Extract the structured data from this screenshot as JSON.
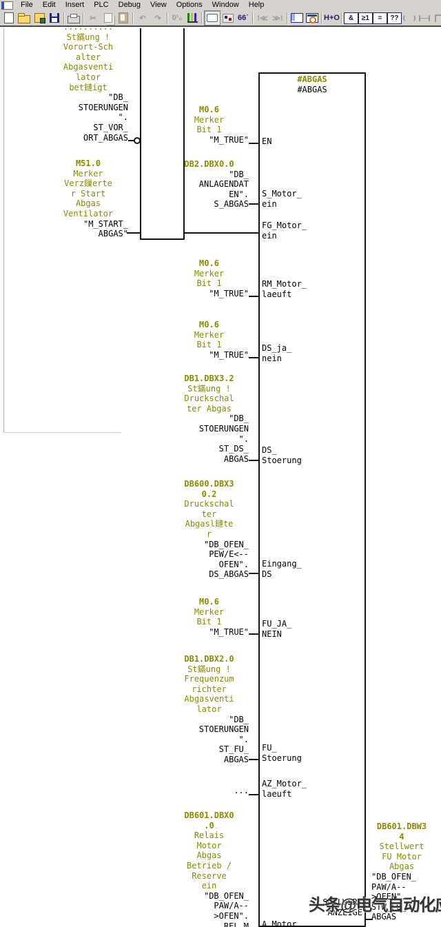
{
  "menu": {
    "items": [
      "File",
      "Edit",
      "Insert",
      "PLC",
      "Debug",
      "View",
      "Options",
      "Window",
      "Help"
    ]
  },
  "toolbar": {
    "buttons": [
      {
        "name": "new",
        "style": "doc"
      },
      {
        "name": "open",
        "style": "folder"
      },
      {
        "name": "open-object",
        "style": "openobj"
      },
      {
        "name": "save",
        "style": "floppy"
      },
      {
        "sep": true
      },
      {
        "name": "print",
        "style": "printer"
      },
      {
        "sep": true
      },
      {
        "name": "cut",
        "glyph": "✂",
        "disabled": true
      },
      {
        "name": "copy",
        "style": "copy",
        "disabled": true
      },
      {
        "name": "paste",
        "style": "paste",
        "disabled": true
      },
      {
        "sep": true
      },
      {
        "name": "undo",
        "glyph": "↶",
        "disabled": true
      },
      {
        "name": "redo",
        "glyph": "↷",
        "disabled": true
      },
      {
        "sep": true
      },
      {
        "name": "address-identification",
        "glyph": "0¹₀",
        "disabled": true
      },
      {
        "name": "download",
        "style": "chart"
      },
      {
        "sep": true
      },
      {
        "name": "comment-toggle",
        "style": "comment",
        "pressed": true
      },
      {
        "name": "symbol-representation",
        "style": "symrep"
      },
      {
        "name": "monitor-glasses",
        "glyph": "66ˊ"
      },
      {
        "sep": true
      },
      {
        "name": "previous-error",
        "glyph": "!≪",
        "disabled": true
      },
      {
        "name": "next-error",
        "glyph": "≫!",
        "disabled": true
      },
      {
        "sep": true
      },
      {
        "name": "overview-window",
        "style": "window"
      },
      {
        "name": "detail-window",
        "style": "zoomwin"
      },
      {
        "sep": true
      },
      {
        "name": "program-elements",
        "glyph": "H+O"
      },
      {
        "sep": true
      },
      {
        "name": "and-box",
        "glyph": "&",
        "box": true
      },
      {
        "name": "or-box",
        "glyph": "≥1",
        "box": true
      },
      {
        "name": "assign-box",
        "glyph": "=",
        "box": true
      },
      {
        "name": "empty-box",
        "glyph": "??",
        "box": true
      },
      {
        "name": "coil",
        "style": "lad-coil",
        "disabled": true
      },
      {
        "name": "contact",
        "style": "lad-contact",
        "disabled": true
      },
      {
        "name": "open-branch",
        "style": "lad-open",
        "disabled": true
      },
      {
        "name": "close-branch",
        "style": "lad-close",
        "disabled": true
      }
    ]
  },
  "diagram": {
    "colors": {
      "symbol_comment": "#8a8a00",
      "operand": "#000000"
    },
    "block": {
      "name_comment": "#ABGAS",
      "name": "#ABGAS",
      "inputs": {
        "en": [
          "EN"
        ],
        "s": [
          "S_Motor_",
          "ein"
        ],
        "fg": [
          "FG_Motor_",
          "ein"
        ],
        "rm": [
          "RM_Motor_",
          "laeuft"
        ],
        "dsjn": [
          "DS_ja_",
          "nein"
        ],
        "dss": [
          "DS_",
          "Stoerung"
        ],
        "eds": [
          "Eingang_",
          "DS"
        ],
        "fujn": [
          "FU_JA_",
          "NEIN"
        ],
        "fus": [
          "FU_",
          "Stoerung"
        ],
        "az": [
          "AZ_Motor_",
          "laeuft"
        ],
        "am": [
          "A_Motor"
        ]
      },
      "outputs": {
        "soll": [
          "SOLLWERT",
          "ANZEIGE"
        ]
      }
    },
    "operands": {
      "a1": [
        [
          "..........",
          "cmt"
        ],
        [
          "St鏋ung !",
          "cmt"
        ],
        [
          "Vorort-Sch",
          "cmt"
        ],
        [
          "alter",
          "cmt"
        ],
        [
          "Abgasventi",
          "cmt"
        ],
        [
          "lator",
          "cmt"
        ],
        [
          "bet鏈igt",
          "cmt"
        ],
        [
          "\"DB_",
          "opd"
        ],
        [
          "STOERUNGEN",
          "opd"
        ],
        [
          "\".",
          "opd"
        ],
        [
          "ST_VOR_",
          "opd"
        ],
        [
          "ORT_ABGAS",
          "opd"
        ]
      ],
      "a2": [
        [
          "M51.0",
          "addr"
        ],
        [
          "Merker",
          "cmt"
        ],
        [
          "Verz鏁erte",
          "cmt"
        ],
        [
          "r Start",
          "cmt"
        ],
        [
          "Abgas",
          "cmt"
        ],
        [
          "Ventilator",
          "cmt"
        ],
        [
          "\"M_START_",
          "opd"
        ],
        [
          "ABGAS\"",
          "opd"
        ]
      ],
      "b1": [
        [
          "M0.6",
          "addr"
        ],
        [
          "Merker",
          "cmt"
        ],
        [
          "Bit 1",
          "cmt"
        ],
        [
          "\"M_TRUE\"",
          "opd"
        ]
      ],
      "b2": [
        [
          "DB2.DBX0.0",
          "addr"
        ],
        [
          "\"DB_",
          "opd"
        ],
        [
          "ANLAGENDAT",
          "opd"
        ],
        [
          "EN\".",
          "opd"
        ],
        [
          "S_ABGAS",
          "opd"
        ]
      ],
      "b3": [
        [
          "M0.6",
          "addr"
        ],
        [
          "Merker",
          "cmt"
        ],
        [
          "Bit 1",
          "cmt"
        ],
        [
          "\"M_TRUE\"",
          "opd"
        ]
      ],
      "b4": [
        [
          "M0.6",
          "addr"
        ],
        [
          "Merker",
          "cmt"
        ],
        [
          "Bit 1",
          "cmt"
        ],
        [
          "\"M_TRUE\"",
          "opd"
        ]
      ],
      "b5": [
        [
          "DB1.DBX3.2",
          "addr"
        ],
        [
          "St鏋ung !",
          "cmt"
        ],
        [
          "Druckschal",
          "cmt"
        ],
        [
          "ter Abgas",
          "cmt"
        ],
        [
          "\"DB_",
          "opd"
        ],
        [
          "STOERUNGEN",
          "opd"
        ],
        [
          "\".",
          "opd"
        ],
        [
          "ST_DS_",
          "opd"
        ],
        [
          "ABGAS",
          "opd"
        ]
      ],
      "b6": [
        [
          "DB600.DBX3",
          "addr"
        ],
        [
          "0.2",
          "addr"
        ],
        [
          "Druckschal",
          "cmt"
        ],
        [
          "ter",
          "cmt"
        ],
        [
          "Abgasl鏈te",
          "cmt"
        ],
        [
          "r",
          "cmt"
        ],
        [
          "\"DB_OFEN_",
          "opd"
        ],
        [
          "PEW/E<--",
          "opd"
        ],
        [
          "OFEN\".",
          "opd"
        ],
        [
          "DS_ABGAS",
          "opd"
        ]
      ],
      "b7": [
        [
          "M0.6",
          "addr"
        ],
        [
          "Merker",
          "cmt"
        ],
        [
          "Bit 1",
          "cmt"
        ],
        [
          "\"M_TRUE\"",
          "opd"
        ]
      ],
      "b8": [
        [
          "DB1.DBX2.0",
          "addr"
        ],
        [
          "St鏋ung !",
          "cmt"
        ],
        [
          "Frequenzum",
          "cmt"
        ],
        [
          "richter",
          "cmt"
        ],
        [
          "Abgasventi",
          "cmt"
        ],
        [
          "lator",
          "cmt"
        ],
        [
          "\"DB_",
          "opd"
        ],
        [
          "STOERUNGEN",
          "opd"
        ],
        [
          "\".",
          "opd"
        ],
        [
          "ST_FU_",
          "opd"
        ],
        [
          "ABGAS",
          "opd"
        ]
      ],
      "b9": [
        [
          "...",
          "opd"
        ]
      ],
      "b10": [
        [
          "DB601.DBX0",
          "addr"
        ],
        [
          ".0",
          "addr"
        ],
        [
          "Relais",
          "cmt"
        ],
        [
          "Motor",
          "cmt"
        ],
        [
          "Abgas",
          "cmt"
        ],
        [
          "Betrieb /",
          "cmt"
        ],
        [
          "Reserve",
          "cmt"
        ],
        [
          "ein",
          "cmt"
        ],
        [
          "\"DB_OFEN_",
          "opd"
        ],
        [
          "PAW/A--",
          "opd"
        ],
        [
          ">OFEN\".",
          "opd"
        ],
        [
          "REL_M",
          "opd"
        ]
      ],
      "c1": [
        [
          "DB601.DBW3",
          "addr"
        ],
        [
          "4",
          "addr"
        ],
        [
          "Stellwert",
          "cmt"
        ],
        [
          "FU Motor",
          "cmt"
        ],
        [
          "Abgas",
          "cmt"
        ],
        [
          "\"DB_OFEN_",
          "opd"
        ],
        [
          "PAW/A--",
          "opd"
        ],
        [
          ">OFEN\".",
          "opd"
        ],
        [
          "STW_FU_",
          "opd"
        ],
        [
          "ABGAS",
          "opd"
        ]
      ]
    },
    "watermark": "头条@电气自动化应用"
  }
}
